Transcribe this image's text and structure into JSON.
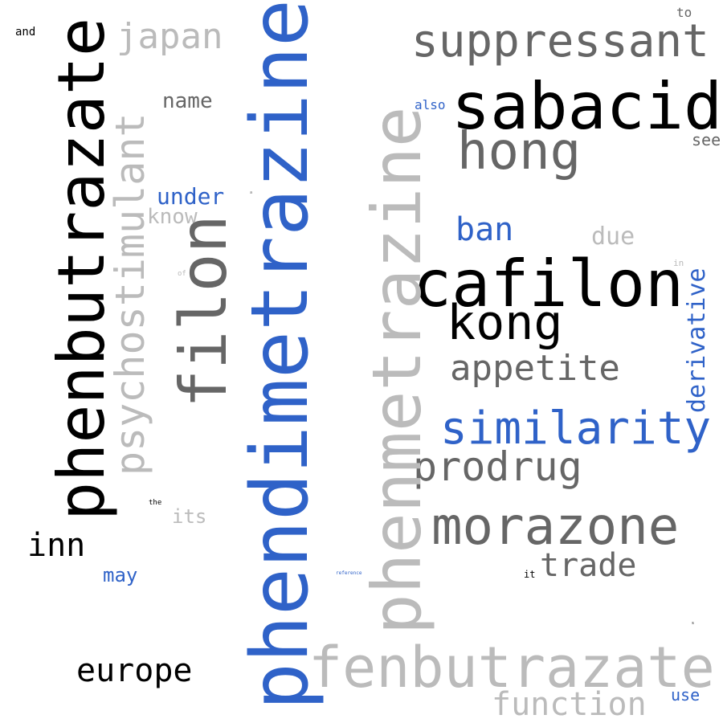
{
  "palette": {
    "black": "#000000",
    "dark_gray": "#666666",
    "light_gray": "#bbbbbb",
    "blue": "#2f62c8"
  },
  "words": {
    "to": "to",
    "and": "and",
    "japan": "japan",
    "suppressant": "suppressant",
    "phenbutrazate": "phenbutrazate",
    "psychostimulant": "psychostimulant",
    "name": "name",
    "filon": "filon",
    "phendimetrazine": "phendimetrazine",
    "phenmetrazine": "phenmetrazine",
    "also": "also",
    "sabacid": "sabacid",
    "see": "see",
    "hong": "hong",
    "under": "under",
    "know": "know",
    "dot_small_1": "a",
    "ban": "ban",
    "due": "due",
    "in": "in",
    "of": "of",
    "cafilon": "cafilon",
    "derivative": "derivative",
    "kong": "kong",
    "appetite": "appetite",
    "similarity": "similarity",
    "prodrug": "prodrug",
    "the": "the",
    "its": "its",
    "morazone": "morazone",
    "inn": "inn",
    "trade": "trade",
    "may": "may",
    "reference": "reference",
    "it": "it",
    "dot_small_2": "s",
    "fenbutrazate": "fenbutrazate",
    "europe": "europe",
    "use": "use",
    "function": "function"
  }
}
